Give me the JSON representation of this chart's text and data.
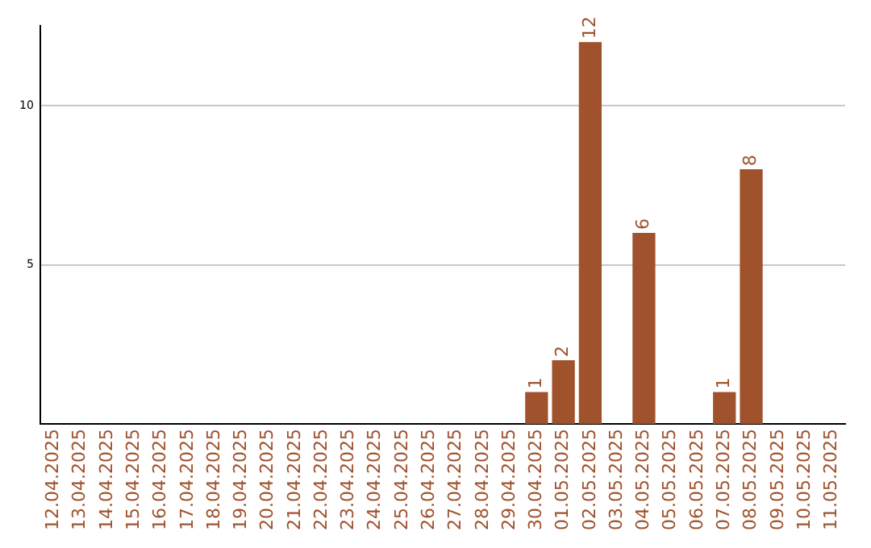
{
  "chart_data": {
    "type": "bar",
    "categories": [
      "12.04.2025",
      "13.04.2025",
      "14.04.2025",
      "15.04.2025",
      "16.04.2025",
      "17.04.2025",
      "18.04.2025",
      "19.04.2025",
      "20.04.2025",
      "21.04.2025",
      "22.04.2025",
      "23.04.2025",
      "24.04.2025",
      "25.04.2025",
      "26.04.2025",
      "27.04.2025",
      "28.04.2025",
      "29.04.2025",
      "30.04.2025",
      "01.05.2025",
      "02.05.2025",
      "03.05.2025",
      "04.05.2025",
      "05.05.2025",
      "06.05.2025",
      "07.05.2025",
      "08.05.2025",
      "09.05.2025",
      "10.05.2025",
      "11.05.2025"
    ],
    "values": [
      0,
      0,
      0,
      0,
      0,
      0,
      0,
      0,
      0,
      0,
      0,
      0,
      0,
      0,
      0,
      0,
      0,
      0,
      1,
      2,
      12,
      0,
      6,
      0,
      0,
      1,
      8,
      0,
      0,
      0
    ],
    "value_labels": [
      null,
      null,
      null,
      null,
      null,
      null,
      null,
      null,
      null,
      null,
      null,
      null,
      null,
      null,
      null,
      null,
      null,
      null,
      "1",
      "2",
      "12",
      null,
      "6",
      null,
      null,
      "1",
      "8",
      null,
      null,
      null
    ],
    "color": "#a0522d",
    "ylim": [
      0,
      12.5
    ],
    "yticks": [
      5,
      10
    ],
    "grid": "y",
    "legend": false
  }
}
